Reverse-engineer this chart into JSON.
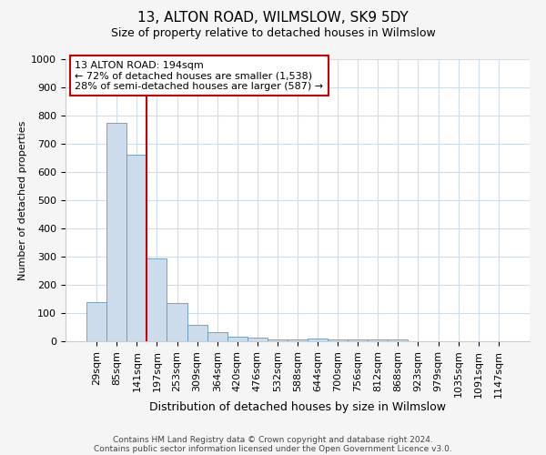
{
  "title": "13, ALTON ROAD, WILMSLOW, SK9 5DY",
  "subtitle": "Size of property relative to detached houses in Wilmslow",
  "xlabel": "Distribution of detached houses by size in Wilmslow",
  "ylabel": "Number of detached properties",
  "bin_labels": [
    "29sqm",
    "85sqm",
    "141sqm",
    "197sqm",
    "253sqm",
    "309sqm",
    "364sqm",
    "420sqm",
    "476sqm",
    "532sqm",
    "588sqm",
    "644sqm",
    "700sqm",
    "756sqm",
    "812sqm",
    "868sqm",
    "923sqm",
    "979sqm",
    "1035sqm",
    "1091sqm",
    "1147sqm"
  ],
  "bar_heights": [
    140,
    775,
    660,
    295,
    135,
    57,
    32,
    17,
    12,
    7,
    5,
    10,
    8,
    5,
    5,
    8,
    0,
    0,
    0,
    0,
    0
  ],
  "bar_color": "#ccdcec",
  "bar_edge_color": "#6699bb",
  "property_line_x": 3,
  "property_line_color": "#cc0000",
  "annotation_text": "13 ALTON ROAD: 194sqm\n← 72% of detached houses are smaller (1,538)\n28% of semi-detached houses are larger (587) →",
  "annotation_box_color": "#cc0000",
  "ylim": [
    0,
    1000
  ],
  "yticks": [
    0,
    100,
    200,
    300,
    400,
    500,
    600,
    700,
    800,
    900,
    1000
  ],
  "footer_line1": "Contains HM Land Registry data © Crown copyright and database right 2024.",
  "footer_line2": "Contains public sector information licensed under the Open Government Licence v3.0.",
  "fig_background": "#f5f5f5",
  "plot_background": "#ffffff",
  "grid_color": "#d0dce8",
  "title_fontsize": 11,
  "subtitle_fontsize": 9,
  "annotation_fontsize": 8,
  "xlabel_fontsize": 9,
  "ylabel_fontsize": 8,
  "tick_fontsize": 8
}
